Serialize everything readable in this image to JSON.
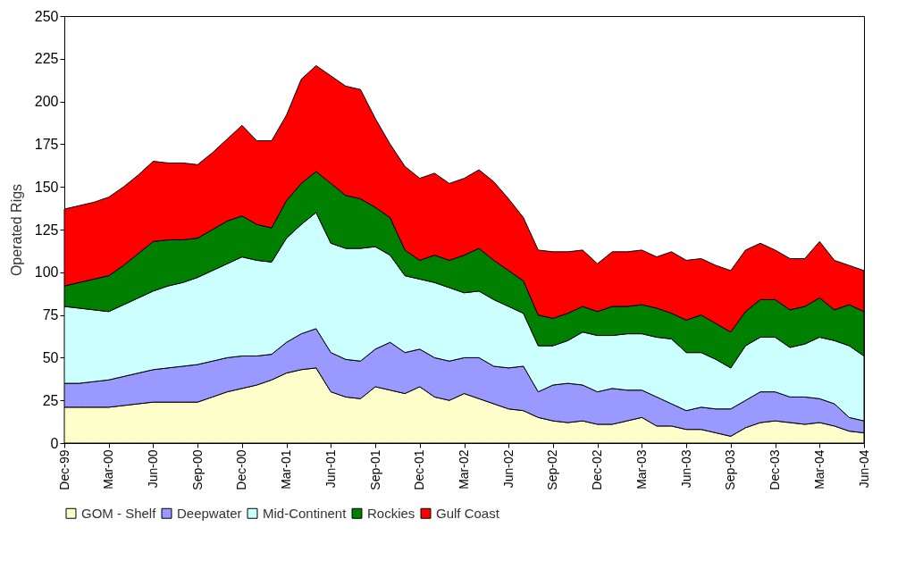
{
  "chart_data": {
    "type": "area",
    "stacked": true,
    "ylabel": "Operated Rigs",
    "ylim": [
      0,
      250
    ],
    "yticks": [
      0,
      25,
      50,
      75,
      100,
      125,
      150,
      175,
      200,
      225,
      250
    ],
    "grid": false,
    "legend": "bottom",
    "categories": [
      "Dec-99",
      null,
      null,
      "Mar-00",
      null,
      null,
      "Jun-00",
      null,
      null,
      "Sep-00",
      null,
      null,
      "Dec-00",
      null,
      null,
      "Mar-01",
      null,
      null,
      "Jun-01",
      null,
      null,
      "Sep-01",
      null,
      null,
      "Dec-01",
      null,
      null,
      "Mar-02",
      null,
      null,
      "Jun-02",
      null,
      null,
      "Sep-02",
      null,
      null,
      "Dec-02",
      null,
      null,
      "Mar-03",
      null,
      null,
      "Jun-03",
      null,
      null,
      "Sep-03",
      null,
      null,
      "Dec-03",
      null,
      null,
      "Mar-04",
      null,
      null,
      "Jun-04"
    ],
    "series": [
      {
        "name": "GOM - Shelf",
        "color": "#ffffcc",
        "values": [
          21,
          21,
          21,
          21,
          22,
          23,
          24,
          24,
          24,
          24,
          27,
          30,
          32,
          34,
          37,
          41,
          43,
          44,
          30,
          27,
          26,
          33,
          31,
          29,
          33,
          27,
          25,
          29,
          26,
          23,
          20,
          19,
          15,
          13,
          12,
          13,
          11,
          11,
          13,
          15,
          10,
          10,
          8,
          8,
          6,
          4,
          9,
          12,
          13,
          12,
          11,
          12,
          10,
          7,
          6
        ]
      },
      {
        "name": "Deepwater",
        "color": "#9999ff",
        "values": [
          14,
          14,
          15,
          16,
          17,
          18,
          19,
          20,
          21,
          22,
          21,
          20,
          19,
          17,
          15,
          18,
          21,
          23,
          23,
          22,
          22,
          22,
          28,
          24,
          22,
          23,
          23,
          21,
          24,
          22,
          24,
          26,
          15,
          21,
          23,
          21,
          19,
          21,
          18,
          16,
          17,
          13,
          11,
          13,
          14,
          16,
          16,
          18,
          17,
          15,
          16,
          14,
          13,
          8,
          7
        ]
      },
      {
        "name": "Mid-Continent",
        "color": "#ccffff",
        "values": [
          45,
          44,
          42,
          40,
          42,
          44,
          46,
          48,
          49,
          51,
          53,
          55,
          58,
          56,
          54,
          61,
          64,
          68,
          64,
          65,
          66,
          60,
          51,
          45,
          41,
          44,
          43,
          38,
          39,
          39,
          36,
          31,
          27,
          23,
          25,
          31,
          33,
          31,
          33,
          33,
          35,
          38,
          34,
          32,
          29,
          24,
          32,
          32,
          32,
          29,
          31,
          36,
          37,
          42,
          38
        ]
      },
      {
        "name": "Rockies",
        "color": "#008000",
        "values": [
          12,
          15,
          18,
          21,
          23,
          26,
          29,
          27,
          25,
          23,
          24,
          25,
          24,
          21,
          20,
          22,
          24,
          24,
          35,
          31,
          29,
          23,
          22,
          15,
          11,
          16,
          16,
          22,
          25,
          23,
          21,
          19,
          18,
          16,
          16,
          15,
          14,
          17,
          16,
          17,
          17,
          15,
          19,
          22,
          21,
          21,
          20,
          22,
          22,
          22,
          22,
          23,
          18,
          24,
          26
        ]
      },
      {
        "name": "Gulf Coast",
        "color": "#ff0000",
        "values": [
          45,
          45,
          45,
          46,
          46,
          46,
          47,
          45,
          45,
          43,
          45,
          48,
          53,
          49,
          51,
          50,
          61,
          62,
          63,
          64,
          64,
          52,
          43,
          49,
          48,
          48,
          45,
          45,
          46,
          46,
          42,
          37,
          38,
          39,
          36,
          33,
          28,
          32,
          32,
          32,
          30,
          36,
          35,
          33,
          34,
          36,
          36,
          33,
          29,
          30,
          28,
          33,
          29,
          23,
          24
        ]
      }
    ]
  }
}
